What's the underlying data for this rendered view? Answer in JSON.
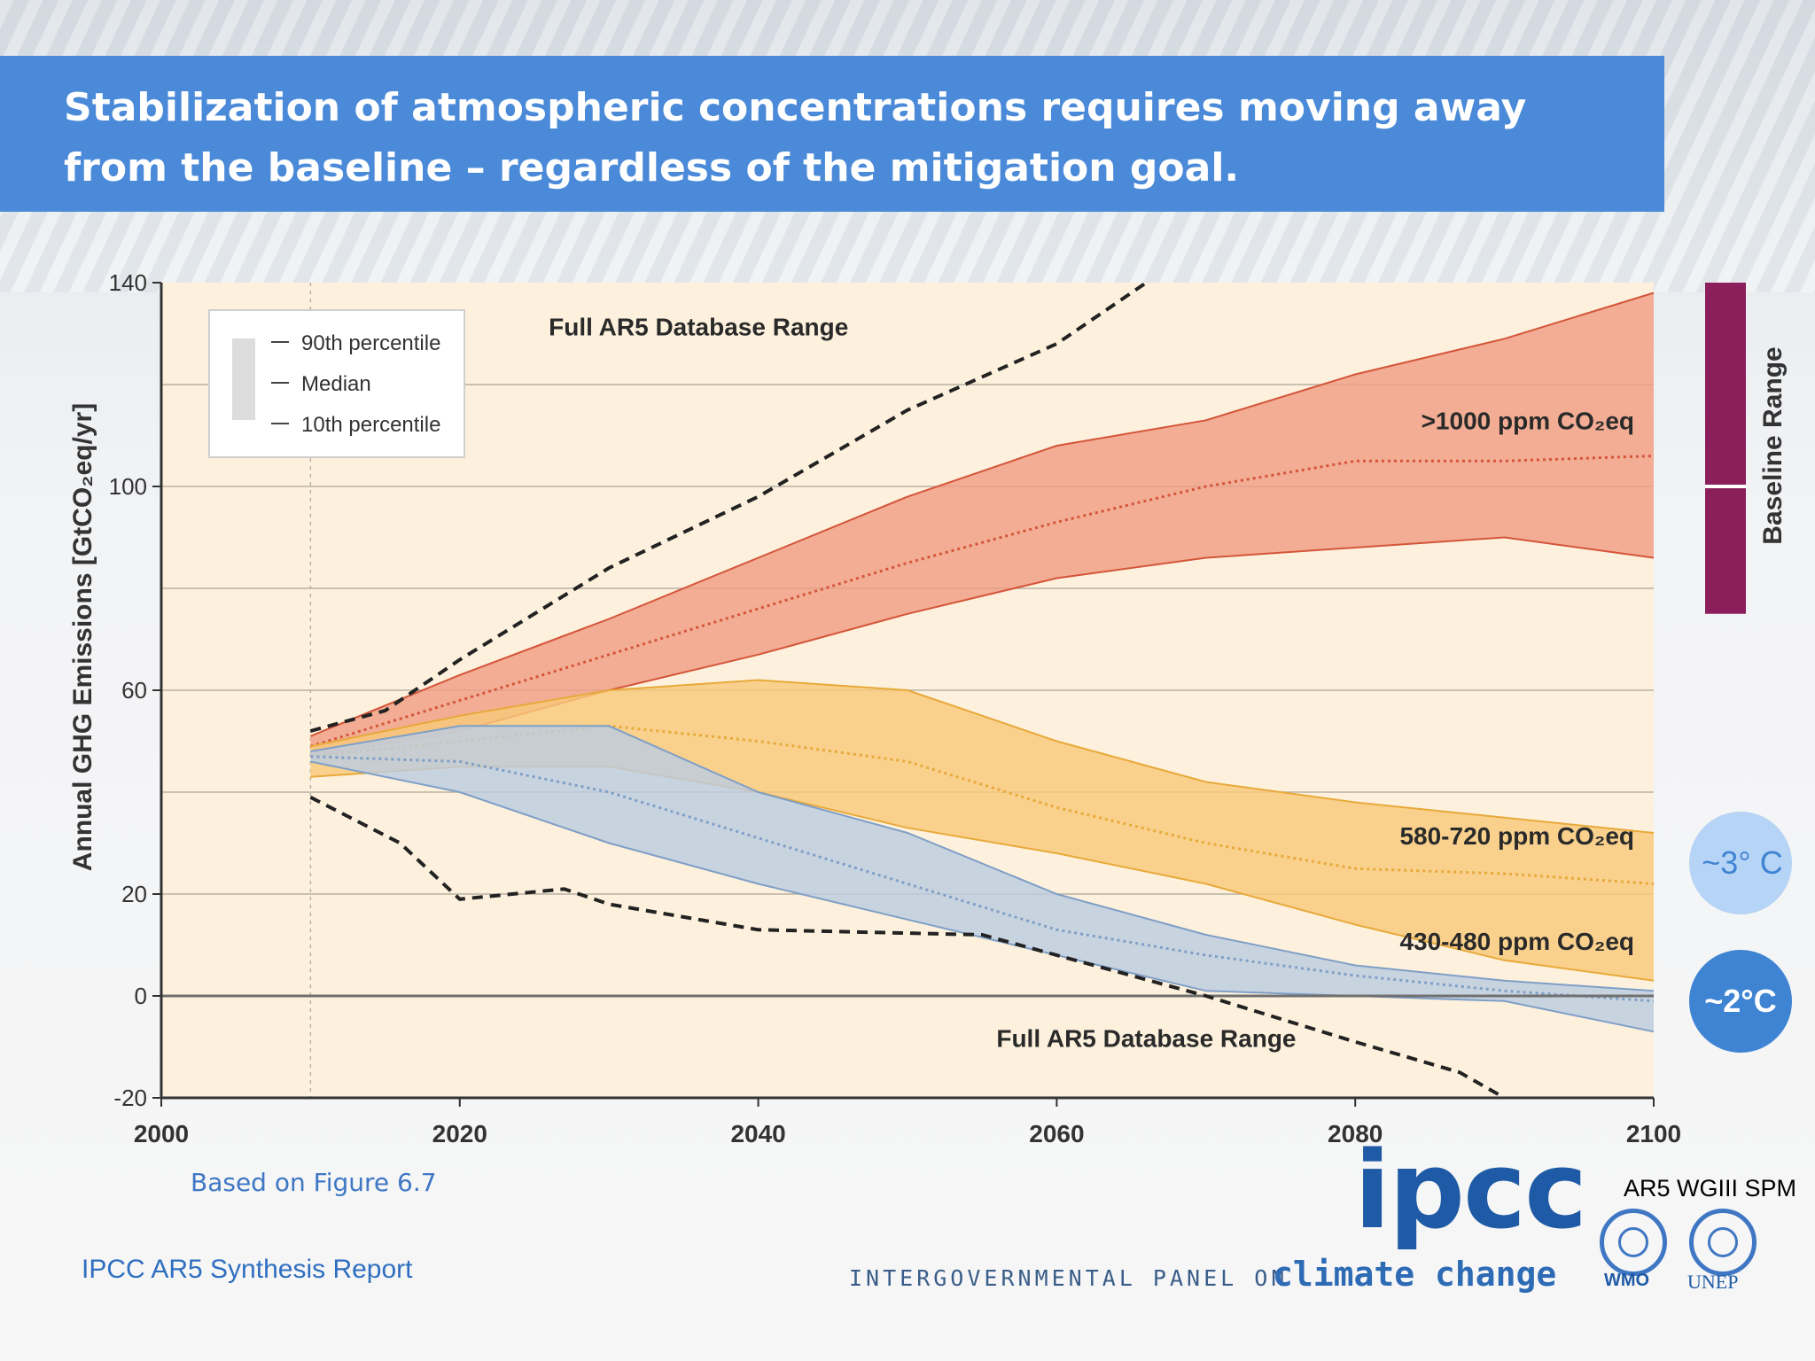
{
  "slide": {
    "title": "Stabilization of atmospheric concentrations requires moving away from the baseline – regardless of the mitigation goal.",
    "source_figure": "Based on Figure 6.7",
    "source_report": "IPCC AR5 Synthesis Report",
    "reference": "AR5 WGIII SPM",
    "logo_text": "ipcc",
    "logo_org_line": "INTERGOVERNMENTAL PANEL ON",
    "logo_org_tail": "climate change",
    "partner_wmo": "WMO",
    "partner_unep": "UNEP",
    "colors": {
      "title_bar": "#4a8ad8",
      "plot_bg": "#fdf1dd",
      "red_band": "#ef9e84",
      "orange_band": "#f8c97b",
      "blue_band": "#bccce0",
      "baseline_bar": "#8a1f5b",
      "badge_3c": "#b6d4f5",
      "badge_2c": "#3f84d3"
    }
  },
  "chart_data": {
    "type": "area",
    "ylabel": "Annual GHG Emissions [GtCO₂eq/yr]",
    "xlim": [
      2000,
      2100
    ],
    "ylim": [
      -20,
      140
    ],
    "x_ticks": [
      2000,
      2020,
      2040,
      2060,
      2080,
      2100
    ],
    "y_ticks": [
      140,
      100,
      60,
      20,
      0,
      -20
    ],
    "gridlines_y": [
      120,
      100,
      80,
      60,
      40,
      20
    ],
    "zero_line": 0,
    "reference_year_line": 2010,
    "legend": {
      "position": "top-left",
      "entries": [
        "90th percentile",
        "Median",
        "10th percentile"
      ]
    },
    "series": [
      {
        "name": ">1000 ppm CO₂eq",
        "color": "#ef9e84",
        "edge": "#d4553a",
        "x": [
          2010,
          2020,
          2030,
          2040,
          2050,
          2060,
          2070,
          2080,
          2090,
          2100
        ],
        "p90": [
          51,
          63,
          74,
          86,
          98,
          108,
          113,
          122,
          129,
          138
        ],
        "median": [
          49,
          58,
          67,
          76,
          85,
          93,
          100,
          105,
          105,
          106
        ],
        "p10": [
          47,
          52,
          60,
          67,
          75,
          82,
          86,
          88,
          90,
          86
        ]
      },
      {
        "name": "580-720 ppm CO₂eq",
        "color": "#f8c97b",
        "edge": "#e8a93a",
        "x": [
          2010,
          2020,
          2030,
          2040,
          2050,
          2060,
          2070,
          2080,
          2090,
          2100
        ],
        "p90": [
          49,
          55,
          60,
          62,
          60,
          50,
          42,
          38,
          35,
          32
        ],
        "median": [
          47,
          50,
          53,
          50,
          46,
          37,
          30,
          25,
          24,
          22
        ],
        "p10": [
          43,
          45,
          45,
          40,
          33,
          28,
          22,
          14,
          7,
          3
        ]
      },
      {
        "name": "430-480 ppm CO₂eq",
        "color": "#bccce0",
        "edge": "#7f9fc6",
        "x": [
          2010,
          2020,
          2030,
          2040,
          2050,
          2060,
          2070,
          2080,
          2090,
          2100
        ],
        "p90": [
          48,
          53,
          53,
          40,
          32,
          20,
          12,
          6,
          3,
          1
        ],
        "median": [
          47,
          46,
          40,
          31,
          22,
          13,
          8,
          4,
          1,
          -1
        ],
        "p10": [
          46,
          40,
          30,
          22,
          15,
          8,
          1,
          0,
          -1,
          -7
        ]
      }
    ],
    "database_range": {
      "label_upper": "Full AR5 Database Range",
      "label_lower": "Full AR5 Database Range",
      "upper": {
        "x": [
          2010,
          2015,
          2020,
          2030,
          2040,
          2050,
          2060,
          2066
        ],
        "y": [
          52,
          56,
          66,
          84,
          98,
          115,
          128,
          140
        ]
      },
      "lower": {
        "x": [
          2010,
          2016,
          2020,
          2027,
          2030,
          2040,
          2055,
          2070,
          2080,
          2087,
          2090
        ],
        "y": [
          39,
          30,
          19,
          21,
          18,
          13,
          12,
          0,
          -9,
          -15,
          -20
        ]
      }
    },
    "side_markers": {
      "baseline_range_label": "Baseline Range",
      "baseline_range": [
        75,
        140
      ],
      "baseline_median": 100,
      "badge_3c": "~3° C",
      "badge_2c": "~2°C"
    }
  }
}
